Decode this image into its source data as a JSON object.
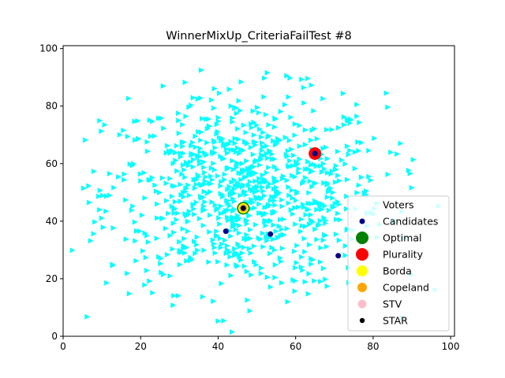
{
  "chart_data": {
    "type": "scatter",
    "title": "WinnerMixUp_CriteriaFailTest #8",
    "xlabel": "",
    "ylabel": "",
    "xlim": [
      0,
      101
    ],
    "ylim": [
      0,
      101
    ],
    "x_ticks": [
      0,
      20,
      40,
      60,
      80,
      100
    ],
    "y_ticks": [
      0,
      20,
      40,
      60,
      80,
      100
    ],
    "grid": false,
    "legend_position": "lower right",
    "voters": {
      "name": "Voters",
      "color": "#00ffff",
      "marker": "triangle-right",
      "center": [
        47,
        50
      ],
      "spread": [
        18,
        17
      ],
      "count": 900
    },
    "candidates": {
      "name": "Candidates",
      "color": "#00008b",
      "points": [
        [
          42,
          36.5
        ],
        [
          46.5,
          44.5
        ],
        [
          53.5,
          35.5
        ],
        [
          65,
          63.5
        ],
        [
          71,
          28
        ]
      ]
    },
    "winners": [
      {
        "name": "Optimal",
        "color": "#008000",
        "x": 46.5,
        "y": 44.5
      },
      {
        "name": "Plurality",
        "color": "#ff0000",
        "x": 65,
        "y": 63.5
      },
      {
        "name": "Borda",
        "color": "#ffff00",
        "x": 46.5,
        "y": 44.5
      },
      {
        "name": "Copeland",
        "color": "#ffa500",
        "x": 46.5,
        "y": 44.5
      },
      {
        "name": "STV",
        "color": "#ffc0cb",
        "x": 46.5,
        "y": 44.5
      },
      {
        "name": "STAR",
        "color": "#000000",
        "x": 46.5,
        "y": 44.5
      }
    ],
    "legend": [
      "Voters",
      "Candidates",
      "Optimal",
      "Plurality",
      "Borda",
      "Copeland",
      "STV",
      "STAR"
    ]
  }
}
